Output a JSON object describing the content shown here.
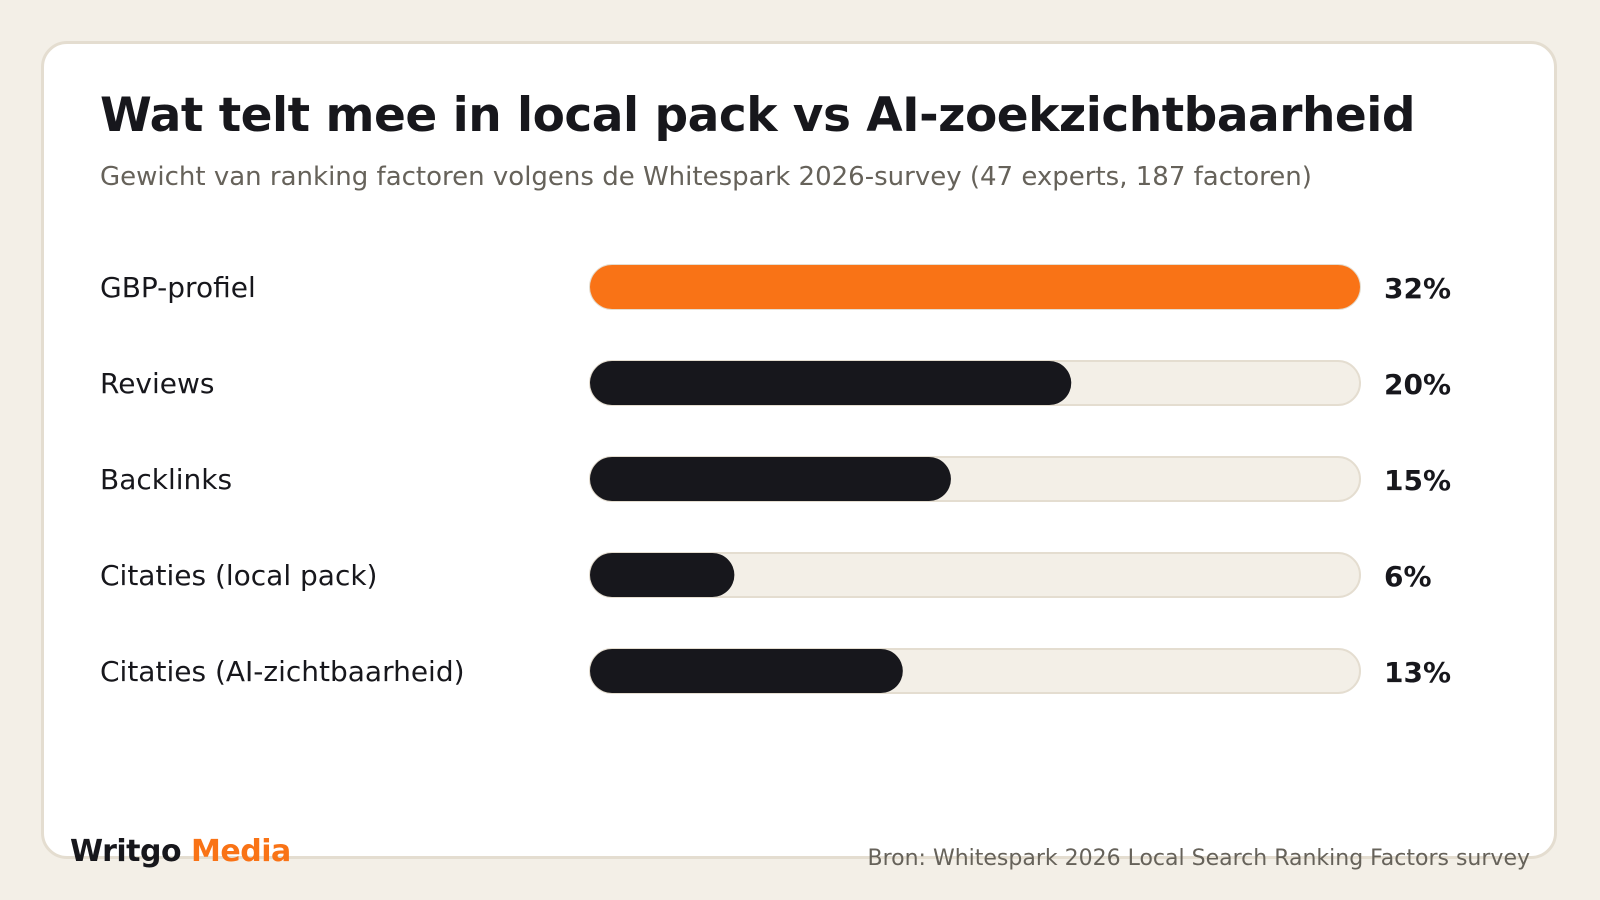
{
  "colors": {
    "highlight": "#f97316",
    "bar": "#17171c",
    "track": "#f3efe7",
    "track_border": "#e4ddd0"
  },
  "chart_data": {
    "type": "bar",
    "orientation": "horizontal",
    "title": "Wat telt mee in local pack vs AI-zoekzichtbaarheid",
    "subtitle": "Gewicht van ranking factoren volgens de Whitespark 2026-survey (47 experts, 187 factoren)",
    "categories": [
      "GBP-profiel",
      "Reviews",
      "Backlinks",
      "Citaties (local pack)",
      "Citaties (AI-zichtbaarheid)"
    ],
    "values": [
      32,
      20,
      15,
      6,
      13
    ],
    "value_labels": [
      "32%",
      "20%",
      "15%",
      "6%",
      "13%"
    ],
    "xlim": [
      0,
      32
    ],
    "highlight_index": 0,
    "grid": false
  },
  "footer": {
    "brand": "Writgo",
    "brand_accent": "Media",
    "source": "Bron: Whitespark 2026 Local Search Ranking Factors survey"
  }
}
